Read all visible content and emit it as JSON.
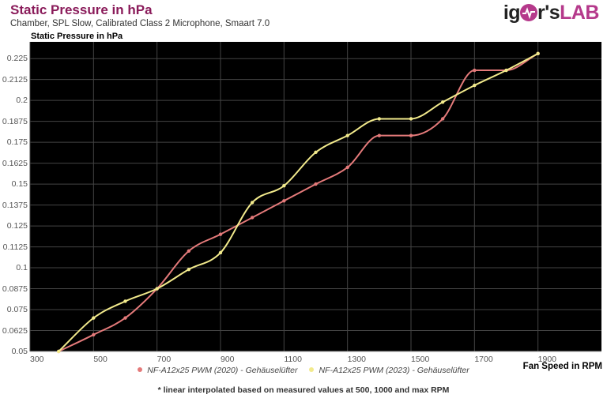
{
  "header": {
    "title": "Static Pressure in hPa",
    "subtitle": "Chamber, SPL Slow, Calibrated Class 2 Microphone, Smaart 7.0",
    "logo_left": "ig",
    "logo_mid": "r's",
    "logo_right": "LAB"
  },
  "colors": {
    "title": "#8a1b5a",
    "brand": "#b5398b",
    "plot_bg": "#000000",
    "grid": "#444444",
    "series_2020": "#e47a7a",
    "series_2023": "#f2ea8c"
  },
  "legend": {
    "items": [
      {
        "label": "NF-A12x25 PWM (2020) - Gehäuselüfter",
        "color": "#e47a7a"
      },
      {
        "label": "NF-A12x25 PWM (2023) - Gehäuselüfter",
        "color": "#f2ea8c"
      }
    ]
  },
  "footnote": "* linear interpolated based on measured values at 500, 1000 and max RPM",
  "chart_data": {
    "type": "line",
    "title": "Static Pressure in hPa",
    "subtitle": "Chamber, SPL Slow, Calibrated Class 2 Microphone, Smaart 7.0",
    "ylabel": "Static Pressure in hPa",
    "xlabel": "Fan Speed in RPM",
    "xlim": [
      300,
      2100
    ],
    "ylim": [
      0.05,
      0.235
    ],
    "x_ticks": [
      "300",
      "500",
      "700",
      "900",
      "1100",
      "1300",
      "1500",
      "1700",
      "1900"
    ],
    "y_ticks": [
      "0.05",
      "0.0625",
      "0.075",
      "0.0875",
      "0.1",
      "0.1125",
      "0.125",
      "0.1375",
      "0.15",
      "0.1625",
      "0.175",
      "0.1875",
      "0.2",
      "0.2125",
      "0.225"
    ],
    "grid": true,
    "legend_position": "bottom",
    "x": [
      390,
      500,
      600,
      700,
      800,
      900,
      1000,
      1100,
      1200,
      1300,
      1400,
      1500,
      1600,
      1700,
      1800,
      1900
    ],
    "series": [
      {
        "name": "NF-A12x25 PWM (2020) - Gehäuselüfter",
        "color": "#e47a7a",
        "values": [
          0.05,
          0.06,
          0.07,
          0.0875,
          0.11,
          0.12,
          0.13,
          0.14,
          0.15,
          0.16,
          0.179,
          0.179,
          0.189,
          0.218,
          0.218,
          0.228
        ]
      },
      {
        "name": "NF-A12x25 PWM (2023) - Gehäuselüfter",
        "color": "#f2ea8c",
        "values": [
          0.05,
          0.07,
          0.08,
          0.0875,
          0.099,
          0.109,
          0.139,
          0.149,
          0.169,
          0.179,
          0.189,
          0.189,
          0.199,
          0.209,
          0.218,
          0.228
        ]
      }
    ]
  }
}
